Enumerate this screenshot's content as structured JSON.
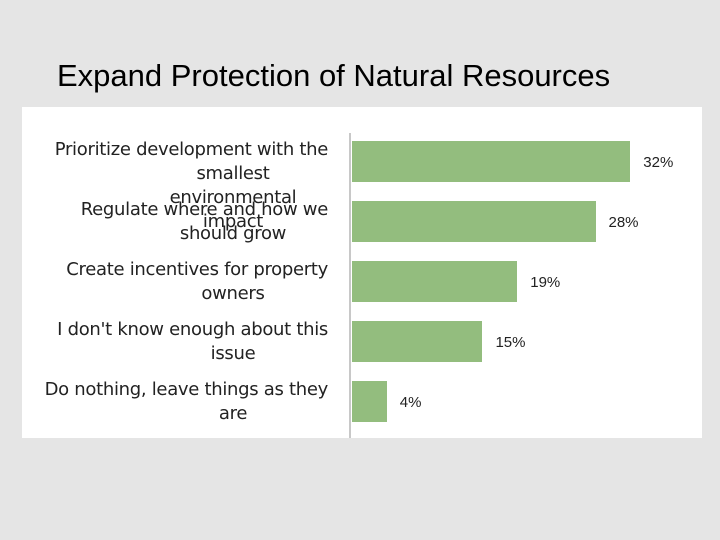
{
  "title": "Expand Protection of Natural Resources",
  "chart_data": {
    "type": "bar",
    "orientation": "horizontal",
    "categories": [
      [
        "Prioritize development  with the",
        "smallest environmental impact"
      ],
      [
        "Regulate where and how we",
        "should grow"
      ],
      [
        "Create incentives for property",
        "owners"
      ],
      [
        "I don't know enough about this",
        "issue"
      ],
      [
        "Do nothing,  leave things as they",
        "are"
      ]
    ],
    "values": [
      32,
      28,
      19,
      15,
      4
    ],
    "value_labels": [
      "32%",
      "28%",
      "19%",
      "15%",
      "4%"
    ],
    "unit": "%",
    "xlim": [
      0,
      33
    ],
    "grid": false,
    "bar_color": "#93bd7e"
  }
}
